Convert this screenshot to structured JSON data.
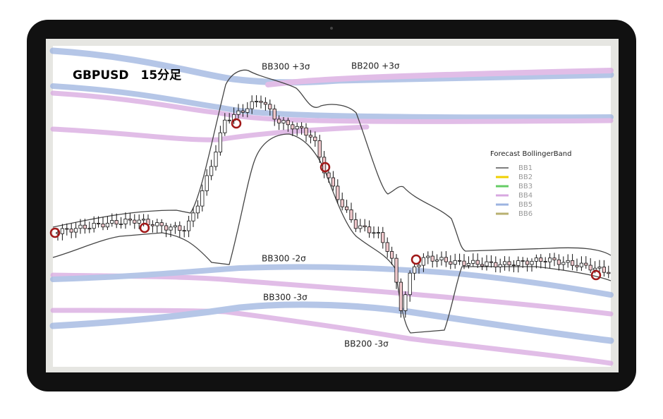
{
  "header": {
    "title": "GBPUSD　15分足"
  },
  "annotations": [
    "BB300 +3σ",
    "BB200 +3σ",
    "BB300 -2σ",
    "BB300 -3σ",
    "BB200 -3σ"
  ],
  "legend": {
    "title": "Forecast BollingerBand",
    "items": [
      {
        "label": "BB1",
        "color": "#555555"
      },
      {
        "label": "BB2",
        "color": "#f0d000"
      },
      {
        "label": "BB3",
        "color": "#66cc66"
      },
      {
        "label": "BB4",
        "color": "#d8a8e0"
      },
      {
        "label": "BB5",
        "color": "#9db4e0"
      },
      {
        "label": "BB6",
        "color": "#b8b070"
      }
    ]
  }
}
